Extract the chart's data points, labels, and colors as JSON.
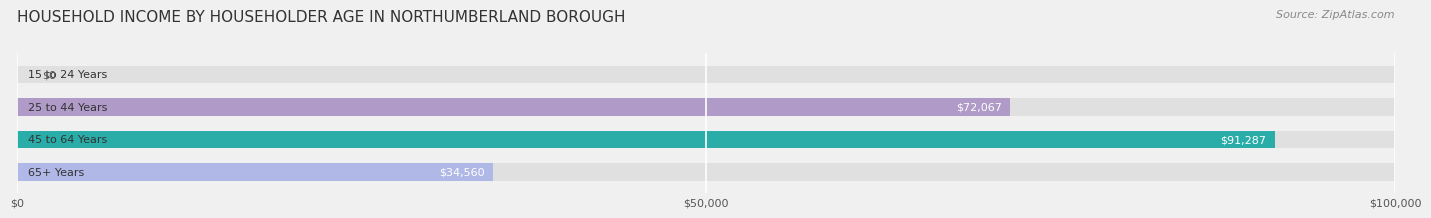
{
  "title": "HOUSEHOLD INCOME BY HOUSEHOLDER AGE IN NORTHUMBERLAND BOROUGH",
  "source": "Source: ZipAtlas.com",
  "categories": [
    "15 to 24 Years",
    "25 to 44 Years",
    "45 to 64 Years",
    "65+ Years"
  ],
  "values": [
    0,
    72067,
    91287,
    34560
  ],
  "bar_colors": [
    "#a8c8e8",
    "#b09ac8",
    "#2aada8",
    "#b0b8e8"
  ],
  "background_color": "#f0f0f0",
  "xlim": [
    0,
    100000
  ],
  "xticks": [
    0,
    50000,
    100000
  ],
  "xtick_labels": [
    "$0",
    "$50,000",
    "$100,000"
  ],
  "title_fontsize": 11,
  "source_fontsize": 8,
  "label_fontsize": 8,
  "value_fontsize": 8
}
